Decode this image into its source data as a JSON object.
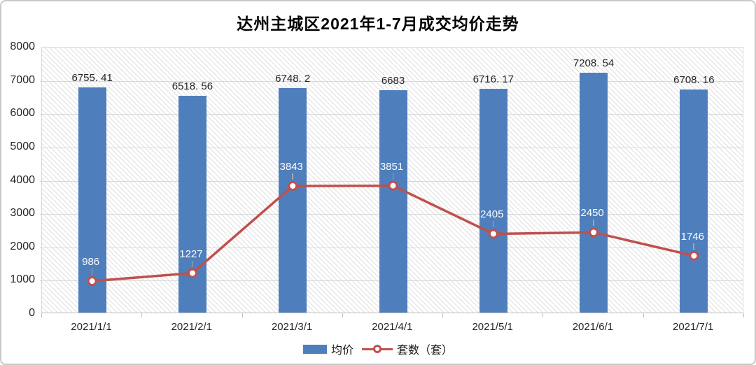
{
  "title": "达州主城区2021年1-7月成交均价走势",
  "colors": {
    "bar": "#4e7fbc",
    "line": "#c0504d",
    "marker_fill": "#ffffff",
    "grid": "#d9d9d9",
    "axis": "#bfbfbf",
    "hatch": "#e7e7e7",
    "border": "#c9c9c9",
    "text": "#262626",
    "point_label": "#ffffff"
  },
  "chart_data": {
    "type": "bar",
    "combo": true,
    "title": "达州主城区2021年1-7月成交均价走势",
    "categories": [
      "2021/1/1",
      "2021/2/1",
      "2021/3/1",
      "2021/4/1",
      "2021/5/1",
      "2021/6/1",
      "2021/7/1"
    ],
    "series": [
      {
        "name": "均价",
        "type": "bar",
        "values": [
          6755.41,
          6518.56,
          6748.2,
          6683,
          6716.17,
          7208.54,
          6708.16
        ],
        "labels": [
          "6755. 41",
          "6518. 56",
          "6748. 2",
          "6683",
          "6716. 17",
          "7208. 54",
          "6708. 16"
        ]
      },
      {
        "name": "套数（套）",
        "type": "line",
        "values": [
          986,
          1227,
          3843,
          3851,
          2405,
          2450,
          1746
        ],
        "labels": [
          "986",
          "1227",
          "3843",
          "3851",
          "2405",
          "2450",
          "1746"
        ]
      }
    ],
    "xlabel": "",
    "ylabel": "",
    "ylim": [
      0,
      8000
    ],
    "ytick_interval": 1000,
    "ytick_labels": [
      "0",
      "1000",
      "2000",
      "3000",
      "4000",
      "5000",
      "6000",
      "7000",
      "8000"
    ],
    "grid": true,
    "background_pattern": "diagonal-hatch",
    "legend_position": "bottom"
  }
}
